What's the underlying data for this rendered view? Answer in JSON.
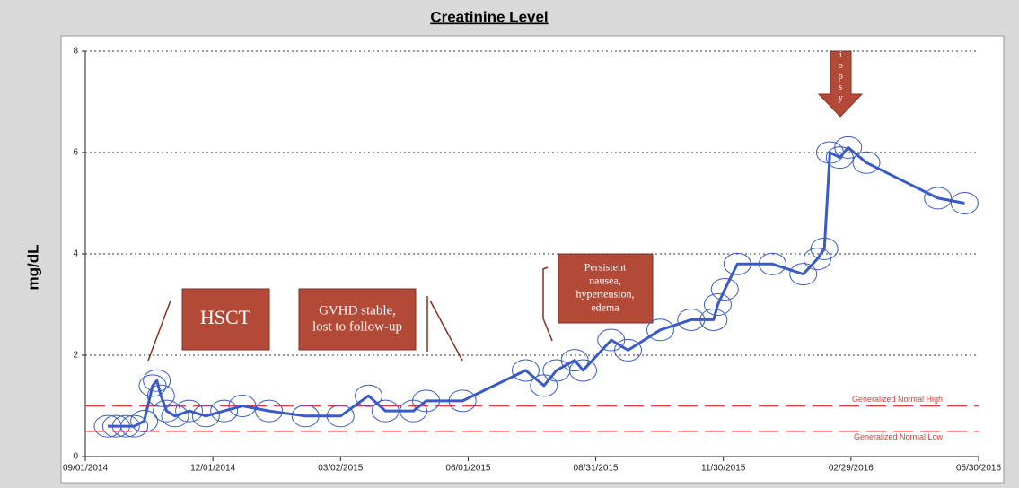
{
  "chart_data": {
    "type": "line",
    "title": "Creatinine Level",
    "y_label": "mg/dL",
    "x": [
      "09/17/2014",
      "09/23/2014",
      "09/30/2014",
      "10/06/2014",
      "10/13/2014",
      "10/19/2014",
      "10/22/2014",
      "10/25/2014",
      "10/29/2014",
      "11/04/2014",
      "11/14/2014",
      "11/26/2014",
      "12/09/2014",
      "12/22/2014",
      "01/10/2015",
      "02/05/2015",
      "03/02/2015",
      "03/22/2015",
      "04/03/2015",
      "04/23/2015",
      "05/02/2015",
      "05/28/2015",
      "07/12/2015",
      "07/25/2015",
      "08/03/2015",
      "08/16/2015",
      "08/22/2015",
      "09/11/2015",
      "09/23/2015",
      "10/16/2015",
      "11/07/2015",
      "11/23/2015",
      "11/26/2015",
      "12/01/2015",
      "12/10/2015",
      "01/04/2016",
      "01/26/2016",
      "02/05/2016",
      "02/10/2016",
      "02/14/2016",
      "02/21/2016",
      "02/27/2016",
      "03/11/2016",
      "05/01/2016",
      "05/20/2016"
    ],
    "values": [
      0.6,
      0.6,
      0.6,
      0.6,
      0.7,
      1.4,
      1.5,
      1.2,
      0.9,
      0.8,
      0.9,
      0.8,
      0.9,
      1.0,
      0.9,
      0.8,
      0.8,
      1.2,
      0.9,
      0.9,
      1.1,
      1.1,
      1.7,
      1.4,
      1.7,
      1.9,
      1.7,
      2.3,
      2.1,
      2.5,
      2.7,
      2.7,
      3.0,
      3.3,
      3.8,
      3.8,
      3.6,
      3.9,
      4.1,
      6.0,
      5.9,
      6.1,
      5.8,
      5.1,
      5.0
    ],
    "color": "#3a5bc7",
    "xlim": [
      "09/01/2014",
      "05/30/2016"
    ],
    "xticks": [
      "09/01/2014",
      "12/01/2014",
      "03/02/2015",
      "06/01/2015",
      "08/31/2015",
      "11/30/2015",
      "02/29/2016",
      "05/30/2016"
    ],
    "ylim": [
      0,
      8
    ],
    "yticks": [
      0,
      2,
      4,
      6,
      8
    ],
    "grid": true,
    "reference_lines": [
      {
        "value": 1,
        "label": "Generalized Normal High",
        "color": "#e8383b"
      },
      {
        "value": 0.5,
        "label": "Generalized Normal Low",
        "color": "#e8383b"
      }
    ],
    "annotations": [
      {
        "lines": [
          "HSCT"
        ]
      },
      {
        "lines": [
          "GVHD stable,",
          "lost to follow-up"
        ]
      },
      {
        "lines": [
          "Persistent",
          "nausea,",
          "hypertension,",
          "edema"
        ]
      },
      {
        "lines": [
          "biopsy"
        ]
      }
    ]
  }
}
